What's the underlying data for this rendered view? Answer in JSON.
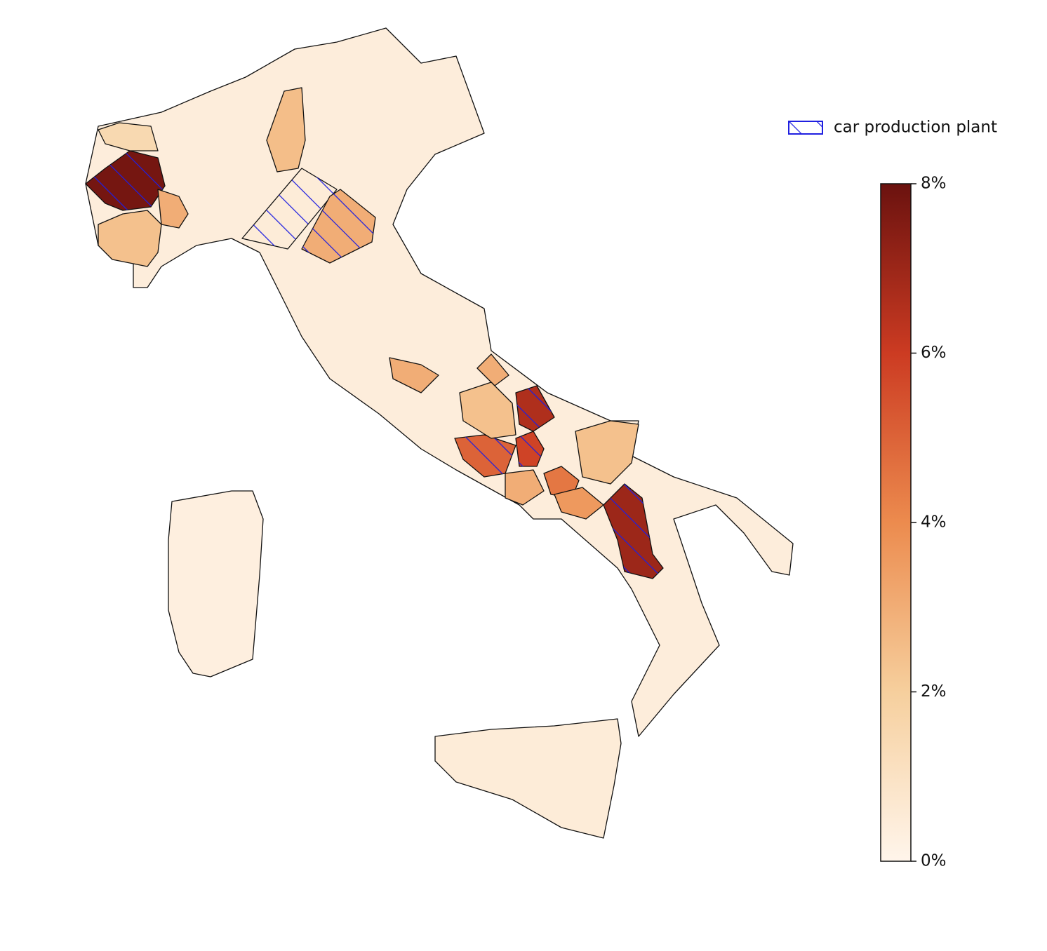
{
  "chart_data": {
    "type": "choropleth",
    "legend": {
      "label": "car production plant",
      "hatch_color": "#1f1fe0"
    },
    "colormap": [
      "#fff5eb",
      "#f6cf9d",
      "#ec8b4e",
      "#cc3b22",
      "#6b120f"
    ],
    "clim": [
      0,
      8
    ],
    "cticks": [
      {
        "value": 0,
        "label": "0%"
      },
      {
        "value": 2,
        "label": "2%"
      },
      {
        "value": 4,
        "label": "4%"
      },
      {
        "value": 6,
        "label": "6%"
      },
      {
        "value": 8,
        "label": "8%"
      }
    ],
    "regions": [
      {
        "value": 0.4,
        "hatched": false
      },
      {
        "value": 0.3,
        "hatched": false
      },
      {
        "value": 0.5,
        "hatched": false
      },
      {
        "value": 7.8,
        "hatched": true
      },
      {
        "value": 2.4,
        "hatched": false
      },
      {
        "value": 3.0,
        "hatched": false
      },
      {
        "value": 1.5,
        "hatched": false
      },
      {
        "value": 2.5,
        "hatched": false
      },
      {
        "value": 0.5,
        "hatched": true
      },
      {
        "value": 3.0,
        "hatched": true
      },
      {
        "value": 3.0,
        "hatched": false
      },
      {
        "value": 3.0,
        "hatched": false
      },
      {
        "value": 6.6,
        "hatched": true
      },
      {
        "value": 5.0,
        "hatched": true
      },
      {
        "value": 5.8,
        "hatched": true
      },
      {
        "value": 4.5,
        "hatched": false
      },
      {
        "value": 3.6,
        "hatched": false
      },
      {
        "value": 3.0,
        "hatched": false
      },
      {
        "value": 7.0,
        "hatched": true
      },
      {
        "value": 2.4,
        "hatched": false
      },
      {
        "value": 2.4,
        "hatched": false
      }
    ]
  }
}
